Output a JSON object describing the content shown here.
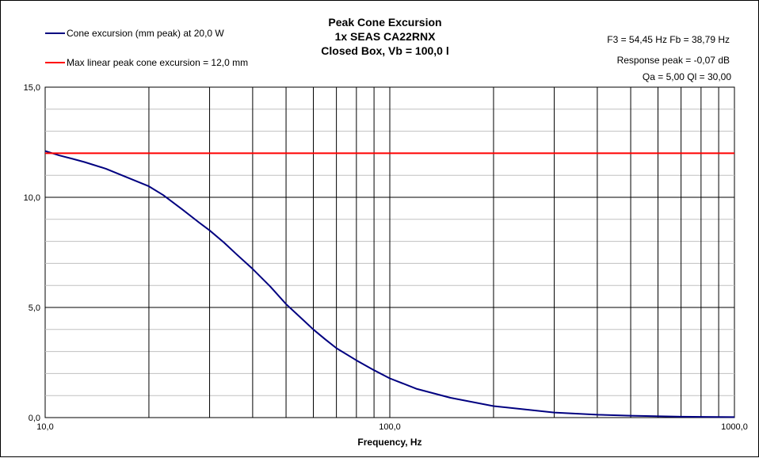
{
  "chart_data": {
    "type": "line",
    "title": [
      "Peak Cone Excursion",
      "1x SEAS CA22RNX",
      "Closed Box, Vb = 100,0 l"
    ],
    "xlabel": "Frequency, Hz",
    "ylabel": "",
    "x_scale": "log",
    "xlim": [
      10,
      1000
    ],
    "ylim": [
      0,
      15
    ],
    "x_tick_labels": [
      {
        "value": 10,
        "label": "10,0"
      },
      {
        "value": 100,
        "label": "100,0"
      },
      {
        "value": 1000,
        "label": "1000,0"
      }
    ],
    "y_tick_labels": [
      {
        "value": 0,
        "label": "0,0"
      },
      {
        "value": 5,
        "label": "5,0"
      },
      {
        "value": 10,
        "label": "10,0"
      },
      {
        "value": 15,
        "label": "15,0"
      }
    ],
    "y_minor_step": 1,
    "grid": true,
    "annotations": [
      "F3 = 54,45  Hz   Fb = 38,79  Hz",
      "Response peak = -0,07  dB",
      "Qa = 5,00   Ql = 30,00"
    ],
    "series": [
      {
        "name": "Cone excursion (mm peak) at 20,0 W",
        "color": "#000080",
        "x": [
          10,
          11,
          12,
          13,
          15,
          17,
          20,
          22,
          25,
          28,
          30,
          33,
          36,
          40,
          45,
          50,
          55,
          60,
          65,
          70,
          80,
          90,
          100,
          120,
          150,
          200,
          300,
          400,
          500,
          700,
          1000
        ],
        "values": [
          12.1,
          11.9,
          11.75,
          11.6,
          11.3,
          10.95,
          10.5,
          10.1,
          9.45,
          8.85,
          8.5,
          7.95,
          7.4,
          6.75,
          5.95,
          5.15,
          4.55,
          4.0,
          3.55,
          3.15,
          2.6,
          2.15,
          1.78,
          1.3,
          0.9,
          0.52,
          0.23,
          0.13,
          0.085,
          0.04,
          0.02
        ]
      },
      {
        "name": "Max linear peak cone excursion = 12,0 mm",
        "color": "#ff0000",
        "x": [
          10,
          1000
        ],
        "values": [
          12.0,
          12.0
        ]
      }
    ]
  }
}
